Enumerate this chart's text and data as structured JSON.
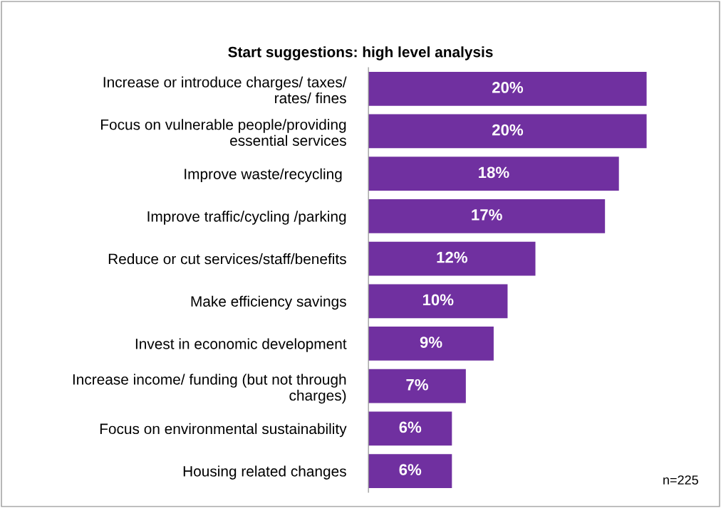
{
  "chart_data": {
    "type": "bar",
    "orientation": "horizontal",
    "title": "Start suggestions: high level analysis",
    "categories": [
      "Increase or introduce charges/ taxes/\nrates/ fines",
      "Focus on vulnerable people/providing\nessential services",
      "Improve waste/recycling ",
      "Improve traffic/cycling /parking",
      "Reduce or cut services/staff/benefits",
      "Make efficiency savings",
      "Invest in economic development",
      "Increase income/ funding (but not through\ncharges)",
      "Focus on environmental sustainability",
      "Housing related changes"
    ],
    "values": [
      20,
      20,
      18,
      17,
      12,
      10,
      9,
      7,
      6,
      6
    ],
    "value_labels": [
      "20%",
      "20%",
      "18%",
      "17%",
      "12%",
      "10%",
      "9%",
      "7%",
      "6%",
      "6%"
    ],
    "color": "#7030a0",
    "annotations": [
      "n=225"
    ]
  }
}
